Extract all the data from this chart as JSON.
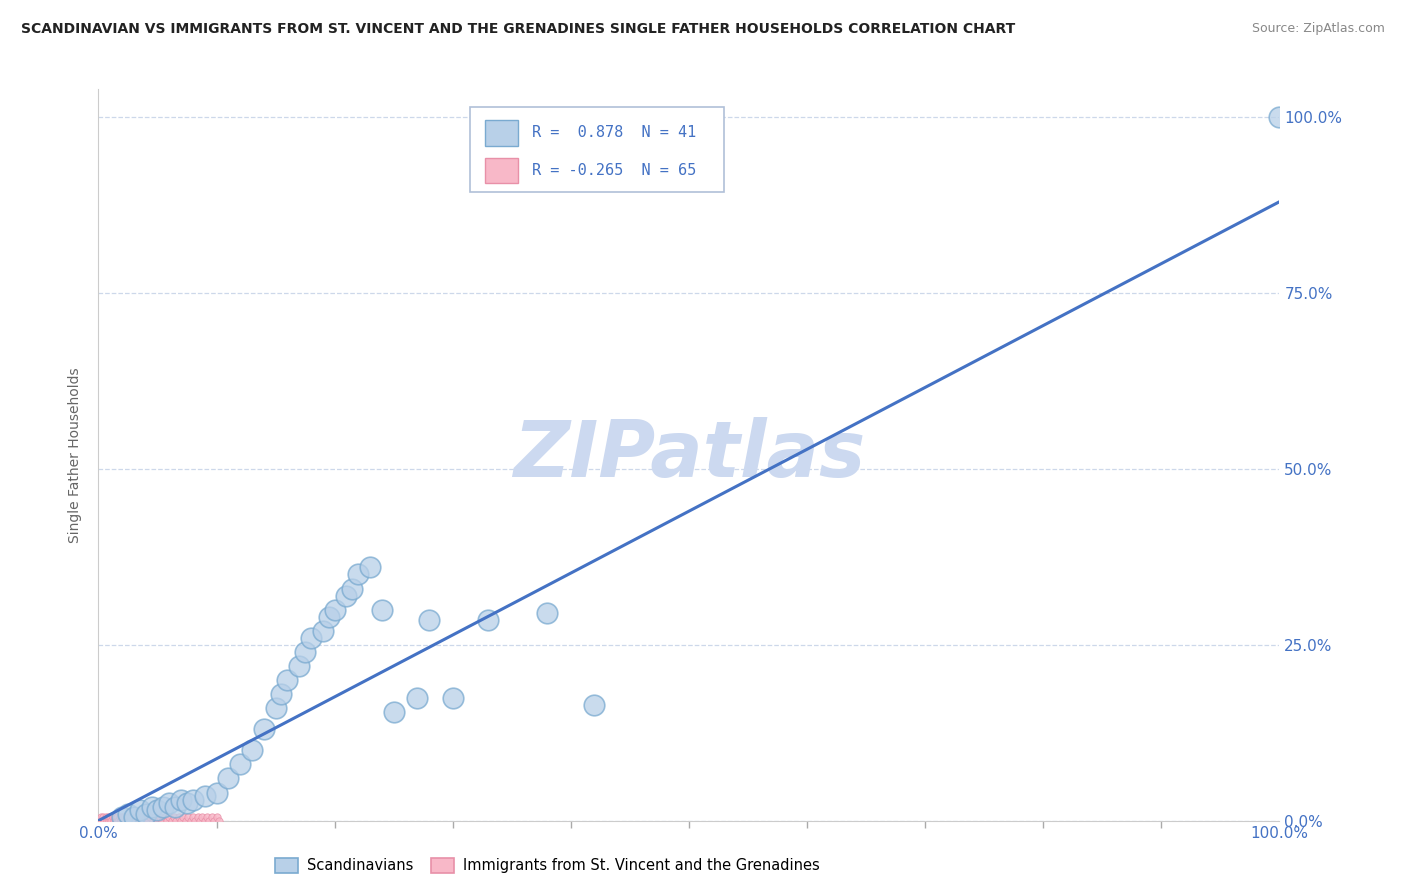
{
  "title": "SCANDINAVIAN VS IMMIGRANTS FROM ST. VINCENT AND THE GRENADINES SINGLE FATHER HOUSEHOLDS CORRELATION CHART",
  "source": "Source: ZipAtlas.com",
  "ylabel": "Single Father Households",
  "watermark": "ZIPatlas",
  "watermark_color": "#ccd9f0",
  "blue_color": "#b8d0e8",
  "blue_edge_color": "#7aaad0",
  "pink_color": "#f8b8c8",
  "pink_edge_color": "#e890a8",
  "line_color": "#4472c4",
  "grid_color": "#c8d4e8",
  "background_color": "#ffffff",
  "plot_bg_color": "#ffffff",
  "legend_r1_text": "R =  0.878  N = 41",
  "legend_r2_text": "R = -0.265  N = 65",
  "legend_text_color": "#4472c4",
  "ytick_color": "#4472c4",
  "xtick_color": "#4472c4",
  "ylabel_color": "#666666",
  "title_color": "#222222",
  "source_color": "#888888",
  "blue_scatter_x": [
    0.02,
    0.025,
    0.03,
    0.035,
    0.04,
    0.045,
    0.05,
    0.055,
    0.06,
    0.065,
    0.07,
    0.075,
    0.08,
    0.09,
    0.1,
    0.11,
    0.12,
    0.13,
    0.14,
    0.15,
    0.155,
    0.16,
    0.17,
    0.175,
    0.18,
    0.19,
    0.195,
    0.2,
    0.21,
    0.215,
    0.22,
    0.23,
    0.24,
    0.25,
    0.27,
    0.28,
    0.3,
    0.33,
    0.38,
    0.42,
    1.0
  ],
  "blue_scatter_y": [
    0.005,
    0.01,
    0.005,
    0.015,
    0.01,
    0.02,
    0.015,
    0.02,
    0.025,
    0.02,
    0.03,
    0.025,
    0.03,
    0.035,
    0.04,
    0.06,
    0.08,
    0.1,
    0.13,
    0.16,
    0.18,
    0.2,
    0.22,
    0.24,
    0.26,
    0.27,
    0.29,
    0.3,
    0.32,
    0.33,
    0.35,
    0.36,
    0.3,
    0.155,
    0.175,
    0.285,
    0.175,
    0.285,
    0.295,
    0.165,
    1.0
  ],
  "pink_scatter_x": [
    0.001,
    0.002,
    0.003,
    0.004,
    0.005,
    0.006,
    0.007,
    0.008,
    0.009,
    0.01,
    0.011,
    0.012,
    0.013,
    0.014,
    0.015,
    0.016,
    0.017,
    0.018,
    0.019,
    0.02,
    0.021,
    0.022,
    0.023,
    0.024,
    0.025,
    0.026,
    0.027,
    0.028,
    0.03,
    0.032,
    0.034,
    0.036,
    0.038,
    0.04,
    0.042,
    0.044,
    0.046,
    0.048,
    0.05,
    0.052,
    0.054,
    0.056,
    0.058,
    0.06,
    0.062,
    0.064,
    0.066,
    0.068,
    0.07,
    0.072,
    0.074,
    0.076,
    0.078,
    0.08,
    0.082,
    0.084,
    0.086,
    0.088,
    0.09,
    0.092,
    0.094,
    0.096,
    0.098,
    0.1,
    0.102
  ],
  "pink_scatter_y": [
    0.0,
    0.005,
    0.0,
    0.005,
    0.0,
    0.005,
    0.0,
    0.005,
    0.0,
    0.005,
    0.0,
    0.005,
    0.0,
    0.005,
    0.0,
    0.005,
    0.0,
    0.005,
    0.0,
    0.005,
    0.0,
    0.005,
    0.0,
    0.005,
    0.0,
    0.005,
    0.0,
    0.005,
    0.0,
    0.005,
    0.0,
    0.005,
    0.0,
    0.005,
    0.0,
    0.005,
    0.0,
    0.005,
    0.0,
    0.005,
    0.0,
    0.005,
    0.0,
    0.005,
    0.0,
    0.005,
    0.0,
    0.005,
    0.0,
    0.005,
    0.0,
    0.005,
    0.0,
    0.005,
    0.0,
    0.005,
    0.0,
    0.005,
    0.0,
    0.005,
    0.0,
    0.005,
    0.0,
    0.005,
    0.0
  ],
  "regline_x": [
    0.0,
    1.0
  ],
  "regline_y": [
    0.0,
    0.88
  ],
  "xlim": [
    0.0,
    1.0
  ],
  "ylim": [
    0.0,
    1.04
  ],
  "yticks": [
    0.0,
    0.25,
    0.5,
    0.75,
    1.0
  ],
  "ytick_labels": [
    "0.0%",
    "25.0%",
    "50.0%",
    "75.0%",
    "100.0%"
  ],
  "xtick_major": [
    0.0,
    1.0
  ],
  "xtick_major_labels": [
    "0.0%",
    "100.0%"
  ],
  "xtick_minor": [
    0.1,
    0.2,
    0.3,
    0.4,
    0.5,
    0.6,
    0.7,
    0.8,
    0.9
  ]
}
